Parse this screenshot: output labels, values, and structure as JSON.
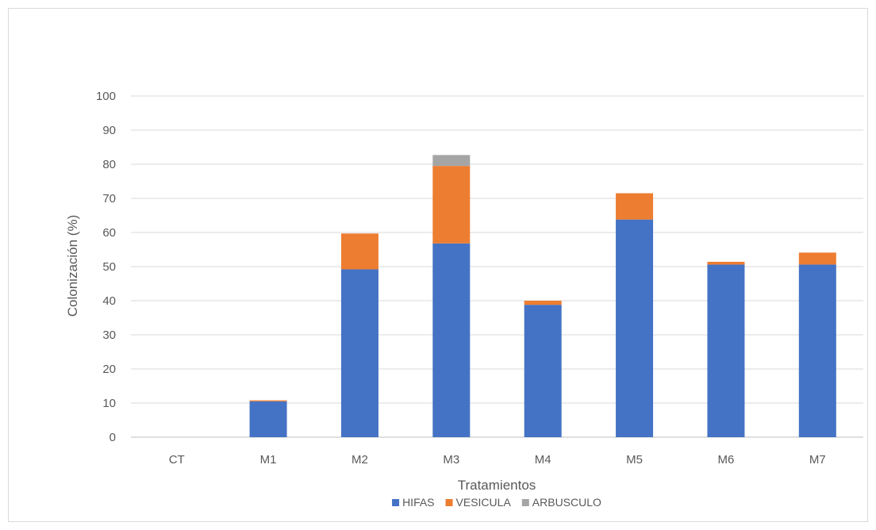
{
  "chart_data": {
    "type": "bar",
    "stacked": true,
    "title": "",
    "xlabel": "Tratamientos",
    "ylabel": "Colonización (%)",
    "ylim": [
      0,
      100
    ],
    "yticks": [
      0,
      10,
      20,
      30,
      40,
      50,
      60,
      70,
      80,
      90,
      100
    ],
    "grid": true,
    "legend_position": "bottom",
    "categories": [
      "CT",
      "M1",
      "M2",
      "M3",
      "M4",
      "M5",
      "M6",
      "M7"
    ],
    "series": [
      {
        "name": "HIFAS",
        "color": "#4472c4",
        "values": [
          0,
          10.5,
          49.2,
          56.8,
          38.8,
          63.8,
          50.6,
          50.6
        ]
      },
      {
        "name": "VESICULA",
        "color": "#ed7d31",
        "values": [
          0,
          0.3,
          10.5,
          22.7,
          1.2,
          7.7,
          0.8,
          3.5
        ]
      },
      {
        "name": "ARBUSCULO",
        "color": "#a5a5a5",
        "values": [
          0,
          0,
          0,
          3.2,
          0,
          0,
          0,
          0
        ]
      }
    ]
  }
}
